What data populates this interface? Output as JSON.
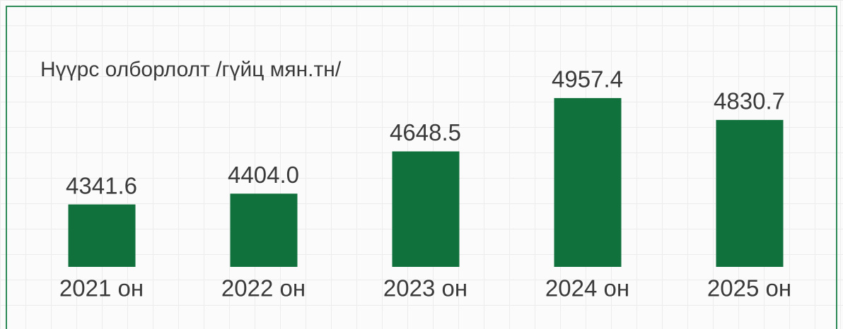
{
  "chart_data": {
    "type": "bar",
    "title": "Нүүрс олборлолт /гүйц мян.тн/",
    "categories": [
      "2021 он",
      "2022 он",
      "2023 он",
      "2024 он",
      "2025 он"
    ],
    "values": [
      4341.6,
      4404.0,
      4648.5,
      4957.4,
      4830.7
    ],
    "value_labels": [
      "4341.6",
      "4404.0",
      "4648.5",
      "4957.4",
      "4830.7"
    ],
    "color": "#11713d",
    "ylim": [
      3980,
      5100
    ]
  }
}
